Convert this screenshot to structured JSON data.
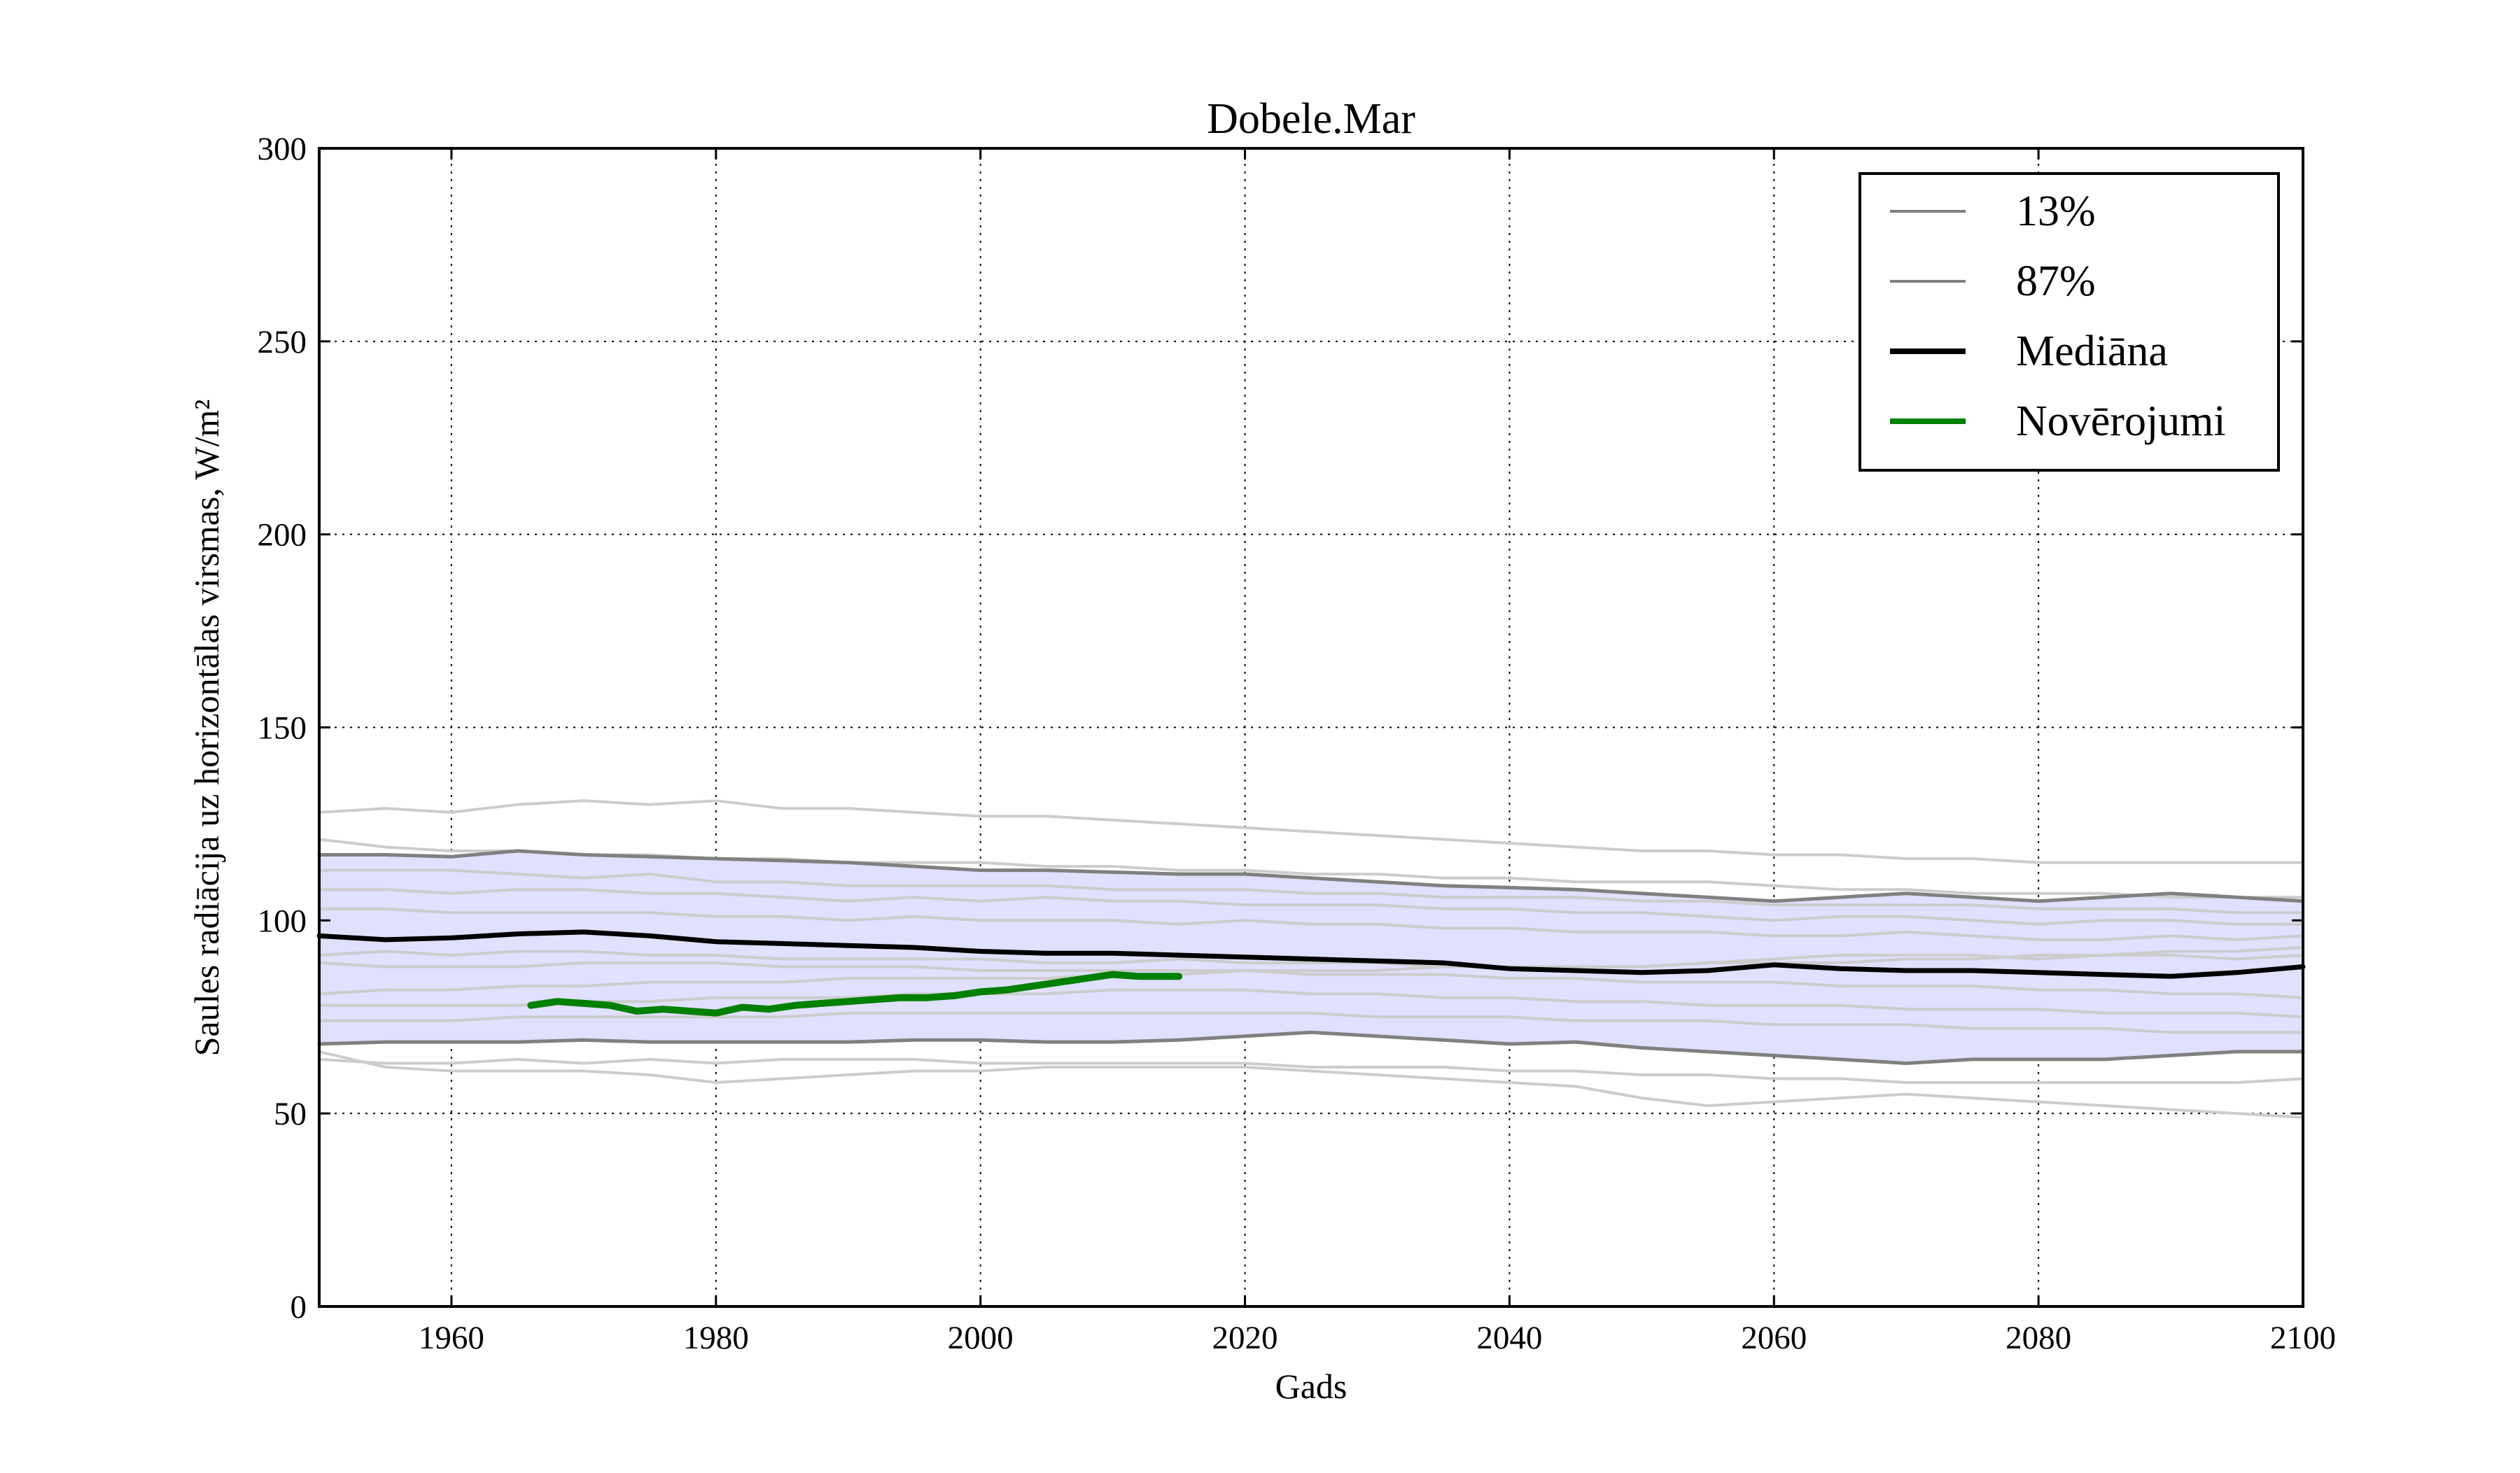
{
  "chart_data": {
    "type": "line",
    "title": "Dobele.Mar",
    "xlabel": "Gads",
    "ylabel": "Saules radiācija uz horizontālas virsmas, W/m²",
    "xlim": [
      1950,
      2100
    ],
    "ylim": [
      0,
      300
    ],
    "xticks": [
      1960,
      1980,
      2000,
      2020,
      2040,
      2060,
      2080,
      2100
    ],
    "yticks": [
      0,
      50,
      100,
      150,
      200,
      250,
      300
    ],
    "grid": true,
    "legend_position": "top-right",
    "legend": [
      {
        "label": "13%",
        "color": "#808080",
        "style": "thin"
      },
      {
        "label": "87%",
        "color": "#808080",
        "style": "thin"
      },
      {
        "label": "Mediāna",
        "color": "#000000",
        "style": "bold"
      },
      {
        "label": "Novērojumi",
        "color": "#008000",
        "style": "bold"
      }
    ],
    "band_color": "#e0e0ff",
    "years": [
      1950,
      1955,
      1960,
      1965,
      1970,
      1975,
      1980,
      1985,
      1990,
      1995,
      2000,
      2005,
      2010,
      2015,
      2020,
      2025,
      2030,
      2035,
      2040,
      2045,
      2050,
      2055,
      2060,
      2065,
      2070,
      2075,
      2080,
      2085,
      2090,
      2095,
      2100
    ],
    "series": [
      {
        "name": "87%",
        "color": "#808080",
        "values": [
          117,
          117,
          116.5,
          118,
          117,
          116.5,
          116,
          115.5,
          115,
          114,
          113,
          113,
          112.5,
          112,
          112,
          111,
          110,
          109,
          108.5,
          108,
          107,
          106,
          105,
          106,
          107,
          106,
          105,
          106,
          107,
          106,
          105
        ]
      },
      {
        "name": "13%",
        "color": "#808080",
        "values": [
          68,
          68.5,
          68.5,
          68.5,
          69,
          68.5,
          68.5,
          68.5,
          68.5,
          69,
          69,
          68.5,
          68.5,
          69,
          70,
          71,
          70,
          69,
          68,
          68.5,
          67,
          66,
          65,
          64,
          63,
          64,
          64,
          64,
          65,
          66,
          66
        ]
      },
      {
        "name": "Mediāna",
        "color": "#000000",
        "values": [
          96,
          95,
          95.5,
          96.5,
          97,
          96,
          94.5,
          94,
          93.5,
          93,
          92,
          91.5,
          91.5,
          91,
          90.5,
          90,
          89.5,
          89,
          87.5,
          87,
          86.5,
          87,
          88.5,
          87.5,
          87,
          87,
          86.5,
          86,
          85.5,
          86.5,
          88
        ]
      },
      {
        "name": "Novērojumi",
        "color": "#008000",
        "x": [
          1966,
          1968,
          1970,
          1972,
          1974,
          1976,
          1978,
          1980,
          1982,
          1984,
          1986,
          1988,
          1990,
          1992,
          1994,
          1996,
          1998,
          2000,
          2002,
          2004,
          2006,
          2008,
          2010,
          2012,
          2014,
          2015
        ],
        "values": [
          78,
          79,
          78.5,
          78,
          76.5,
          77,
          76.5,
          76,
          77.5,
          77,
          78,
          78.5,
          79,
          79.5,
          80,
          80,
          80.5,
          81.5,
          82,
          83,
          84,
          85,
          86,
          85.5,
          85.5,
          85.5
        ]
      }
    ],
    "ensemble": [
      {
        "color": "#cccccc",
        "values": [
          128,
          129,
          128,
          130,
          131,
          130,
          131,
          129,
          129,
          128,
          127,
          127,
          126,
          125,
          124,
          123,
          122,
          121,
          120,
          119,
          118,
          118,
          117,
          117,
          116,
          116,
          115,
          115,
          115,
          115,
          115
        ]
      },
      {
        "color": "#cccccc",
        "values": [
          121,
          119,
          118,
          118,
          117,
          117,
          116,
          116,
          115,
          115,
          115,
          114,
          114,
          113,
          113,
          112,
          112,
          111,
          111,
          110,
          110,
          110,
          109,
          108,
          108,
          107,
          107,
          107,
          106,
          106,
          106
        ]
      },
      {
        "color": "#cccccc",
        "values": [
          113,
          113,
          113,
          112,
          111,
          112,
          110,
          110,
          109,
          109,
          109,
          109,
          108,
          108,
          108,
          107,
          107,
          106,
          106,
          106,
          105,
          105,
          104,
          104,
          104,
          104,
          103,
          103,
          103,
          102,
          102
        ]
      },
      {
        "color": "#cccccc",
        "values": [
          108,
          108,
          107,
          108,
          108,
          107,
          107,
          106,
          105,
          106,
          105,
          106,
          105,
          105,
          104,
          104,
          104,
          103,
          103,
          102,
          102,
          101,
          100,
          101,
          101,
          100,
          99,
          100,
          100,
          99,
          99
        ]
      },
      {
        "color": "#cccccc",
        "values": [
          103,
          103,
          102,
          102,
          102,
          102,
          101,
          101,
          100,
          101,
          100,
          100,
          100,
          99,
          100,
          99,
          99,
          98,
          98,
          97,
          97,
          97,
          96,
          96,
          97,
          96,
          95,
          95,
          96,
          95,
          96
        ]
      },
      {
        "color": "#cccccc",
        "values": [
          91,
          92,
          91,
          92,
          92,
          91,
          91,
          90,
          90,
          90,
          90,
          89,
          89,
          90,
          89,
          89,
          89,
          88,
          88,
          88,
          88,
          89,
          90,
          91,
          91,
          91,
          90,
          91,
          91,
          90,
          91
        ]
      },
      {
        "color": "#cccccc",
        "values": [
          89,
          88,
          88,
          88,
          89,
          89,
          89,
          88,
          88,
          88,
          87,
          87,
          87,
          87,
          87,
          86,
          86,
          86,
          85,
          85,
          84,
          84,
          84,
          83,
          83,
          83,
          82,
          82,
          81,
          81,
          80
        ]
      },
      {
        "color": "#cccccc",
        "values": [
          81,
          82,
          82,
          83,
          83,
          84,
          84,
          84,
          85,
          85,
          85,
          85,
          86,
          86,
          87,
          87,
          87,
          88,
          88,
          88,
          88,
          89,
          89,
          89,
          90,
          90,
          91,
          91,
          92,
          92,
          93
        ]
      },
      {
        "color": "#cccccc",
        "values": [
          78,
          78,
          78,
          78,
          79,
          79,
          80,
          80,
          80,
          81,
          81,
          81,
          82,
          82,
          82,
          81,
          81,
          80,
          80,
          79,
          79,
          78,
          78,
          78,
          77,
          77,
          77,
          76,
          76,
          76,
          75
        ]
      },
      {
        "color": "#cccccc",
        "values": [
          74,
          74,
          74,
          75,
          75,
          75,
          75,
          75,
          76,
          76,
          76,
          76,
          76,
          76,
          76,
          76,
          75,
          75,
          75,
          74,
          74,
          74,
          73,
          73,
          73,
          72,
          72,
          72,
          71,
          71,
          71
        ]
      },
      {
        "color": "#cccccc",
        "values": [
          64,
          63,
          63,
          64,
          63,
          64,
          63,
          64,
          64,
          64,
          63,
          63,
          63,
          63,
          63,
          62,
          62,
          62,
          61,
          61,
          60,
          60,
          59,
          59,
          58,
          58,
          58,
          58,
          58,
          58,
          59
        ]
      },
      {
        "color": "#cccccc",
        "values": [
          66,
          62,
          61,
          61,
          61,
          60,
          58,
          59,
          60,
          61,
          61,
          62,
          62,
          62,
          62,
          61,
          60,
          59,
          58,
          57,
          54,
          52,
          53,
          54,
          55,
          54,
          53,
          52,
          51,
          50,
          49
        ]
      }
    ]
  }
}
